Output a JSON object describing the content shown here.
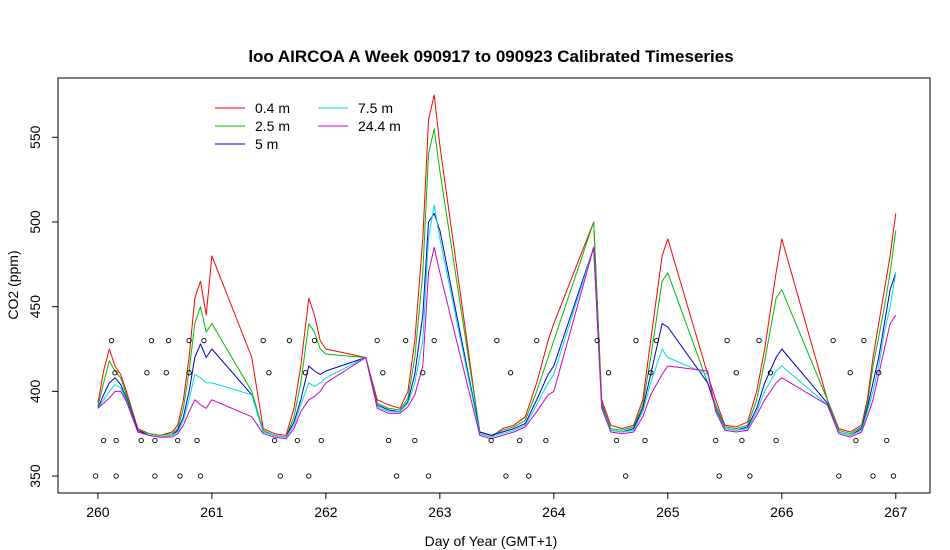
{
  "chart_data": {
    "type": "line",
    "title": "loo AIRCOA A  Week 090917 to 090923  Calibrated Timeseries",
    "xlabel": "Day of Year (GMT+1)",
    "ylabel": "CO2 (ppm)",
    "xlim": [
      259.65,
      267.3
    ],
    "ylim": [
      340,
      585
    ],
    "x_ticks": [
      260,
      261,
      262,
      263,
      264,
      265,
      266,
      267
    ],
    "y_ticks": [
      350,
      400,
      450,
      500,
      550
    ],
    "legend_position": "top-left",
    "colors": {
      "0.4 m": "#ff0000",
      "2.5 m": "#00bb00",
      "5 m": "#0000cc",
      "7.5 m": "#00dddd",
      "24.4 m": "#cc00cc",
      "markers": "#000000"
    },
    "series": [
      {
        "name": "0.4 m",
        "color": "#ff0000",
        "x": [
          260.0,
          260.05,
          260.1,
          260.15,
          260.2,
          260.25,
          260.35,
          260.45,
          260.55,
          260.65,
          260.7,
          260.75,
          260.8,
          260.85,
          260.9,
          260.95,
          261.0,
          261.35,
          261.45,
          261.55,
          261.65,
          261.72,
          261.78,
          261.85,
          261.9,
          261.95,
          262.0,
          262.35,
          262.45,
          262.55,
          262.65,
          262.72,
          262.78,
          262.85,
          262.9,
          262.95,
          263.0,
          263.35,
          263.45,
          263.55,
          263.65,
          263.75,
          263.85,
          263.95,
          264.0,
          264.35,
          264.42,
          264.5,
          264.6,
          264.7,
          264.78,
          264.85,
          264.95,
          265.0,
          265.35,
          265.42,
          265.5,
          265.6,
          265.7,
          265.78,
          265.85,
          265.95,
          266.0,
          266.4,
          266.5,
          266.6,
          266.7,
          266.75,
          266.8,
          266.85,
          266.9,
          266.95,
          267.0
        ],
        "values": [
          393,
          412,
          425,
          415,
          410,
          400,
          378,
          375,
          374,
          376,
          380,
          395,
          420,
          455,
          465,
          445,
          480,
          420,
          378,
          375,
          374,
          390,
          415,
          455,
          445,
          430,
          425,
          420,
          395,
          392,
          390,
          400,
          430,
          490,
          560,
          575,
          545,
          375,
          373,
          378,
          380,
          385,
          405,
          430,
          440,
          500,
          395,
          380,
          378,
          380,
          395,
          430,
          480,
          490,
          410,
          395,
          380,
          379,
          382,
          400,
          425,
          470,
          490,
          395,
          378,
          376,
          380,
          395,
          420,
          440,
          460,
          480,
          505
        ]
      },
      {
        "name": "2.5 m",
        "color": "#00bb00",
        "x": [
          260.0,
          260.05,
          260.1,
          260.15,
          260.2,
          260.25,
          260.35,
          260.45,
          260.55,
          260.65,
          260.7,
          260.75,
          260.8,
          260.85,
          260.9,
          260.95,
          261.0,
          261.35,
          261.45,
          261.55,
          261.65,
          261.72,
          261.78,
          261.85,
          261.9,
          261.95,
          262.0,
          262.35,
          262.45,
          262.55,
          262.65,
          262.72,
          262.78,
          262.85,
          262.9,
          262.95,
          263.0,
          263.35,
          263.45,
          263.55,
          263.65,
          263.75,
          263.85,
          263.95,
          264.0,
          264.35,
          264.42,
          264.5,
          264.6,
          264.7,
          264.78,
          264.85,
          264.95,
          265.0,
          265.35,
          265.42,
          265.5,
          265.6,
          265.7,
          265.78,
          265.85,
          265.95,
          266.0,
          266.4,
          266.5,
          266.6,
          266.7,
          266.75,
          266.8,
          266.85,
          266.9,
          266.95,
          267.0
        ],
        "values": [
          391,
          405,
          418,
          412,
          408,
          398,
          377,
          375,
          374,
          375,
          378,
          390,
          412,
          440,
          450,
          435,
          440,
          400,
          377,
          374,
          373,
          385,
          405,
          440,
          435,
          425,
          422,
          420,
          393,
          390,
          389,
          396,
          420,
          470,
          540,
          555,
          530,
          376,
          374,
          377,
          379,
          383,
          400,
          420,
          430,
          500,
          393,
          378,
          377,
          379,
          392,
          420,
          465,
          470,
          405,
          392,
          379,
          378,
          380,
          395,
          418,
          455,
          460,
          395,
          377,
          375,
          379,
          392,
          415,
          432,
          450,
          470,
          495
        ]
      },
      {
        "name": "5 m",
        "color": "#0000cc",
        "x": [
          260.0,
          260.05,
          260.1,
          260.15,
          260.2,
          260.25,
          260.35,
          260.45,
          260.55,
          260.65,
          260.7,
          260.75,
          260.8,
          260.85,
          260.9,
          260.95,
          261.0,
          261.35,
          261.45,
          261.55,
          261.65,
          261.72,
          261.78,
          261.85,
          261.9,
          261.95,
          262.0,
          262.35,
          262.45,
          262.55,
          262.65,
          262.72,
          262.78,
          262.85,
          262.9,
          262.95,
          263.0,
          263.35,
          263.45,
          263.55,
          263.65,
          263.75,
          263.85,
          263.95,
          264.0,
          264.35,
          264.42,
          264.5,
          264.6,
          264.7,
          264.78,
          264.85,
          264.95,
          265.0,
          265.35,
          265.42,
          265.5,
          265.6,
          265.7,
          265.78,
          265.85,
          265.95,
          266.0,
          266.4,
          266.5,
          266.6,
          266.7,
          266.75,
          266.8,
          266.85,
          266.9,
          266.95,
          267.0
        ],
        "values": [
          390,
          398,
          405,
          408,
          404,
          396,
          377,
          374,
          373,
          374,
          377,
          385,
          400,
          420,
          428,
          420,
          425,
          398,
          376,
          374,
          373,
          382,
          395,
          415,
          412,
          410,
          412,
          420,
          392,
          389,
          388,
          394,
          410,
          445,
          500,
          505,
          495,
          376,
          374,
          376,
          378,
          381,
          395,
          410,
          415,
          485,
          392,
          377,
          376,
          378,
          390,
          410,
          440,
          438,
          405,
          390,
          378,
          377,
          379,
          390,
          405,
          420,
          425,
          393,
          376,
          374,
          378,
          390,
          405,
          420,
          440,
          460,
          470
        ]
      },
      {
        "name": "7.5 m",
        "color": "#00dddd",
        "x": [
          260.0,
          260.05,
          260.1,
          260.15,
          260.2,
          260.25,
          260.35,
          260.45,
          260.55,
          260.65,
          260.7,
          260.75,
          260.8,
          260.85,
          260.9,
          260.95,
          261.0,
          261.35,
          261.45,
          261.55,
          261.65,
          261.72,
          261.78,
          261.85,
          261.9,
          261.95,
          262.0,
          262.35,
          262.45,
          262.55,
          262.65,
          262.72,
          262.78,
          262.85,
          262.9,
          262.95,
          263.0,
          263.35,
          263.45,
          263.55,
          263.65,
          263.75,
          263.85,
          263.95,
          264.0,
          264.35,
          264.42,
          264.5,
          264.6,
          264.7,
          264.78,
          264.85,
          264.95,
          265.0,
          265.35,
          265.42,
          265.5,
          265.6,
          265.7,
          265.78,
          265.85,
          265.95,
          266.0,
          266.4,
          266.5,
          266.6,
          266.7,
          266.75,
          266.8,
          266.85,
          266.9,
          266.95,
          267.0
        ],
        "values": [
          390,
          395,
          400,
          404,
          402,
          395,
          376,
          374,
          373,
          374,
          376,
          383,
          395,
          410,
          408,
          405,
          405,
          398,
          376,
          374,
          373,
          380,
          392,
          405,
          403,
          405,
          408,
          420,
          391,
          388,
          388,
          393,
          405,
          430,
          490,
          510,
          490,
          375,
          373,
          375,
          377,
          380,
          392,
          405,
          410,
          485,
          391,
          377,
          376,
          377,
          388,
          405,
          425,
          420,
          410,
          389,
          378,
          377,
          378,
          388,
          400,
          412,
          415,
          392,
          376,
          374,
          377,
          388,
          400,
          415,
          435,
          450,
          470
        ]
      },
      {
        "name": "24.4 m",
        "color": "#cc00cc",
        "x": [
          260.0,
          260.05,
          260.1,
          260.15,
          260.2,
          260.25,
          260.35,
          260.45,
          260.55,
          260.65,
          260.7,
          260.75,
          260.8,
          260.85,
          260.9,
          260.95,
          261.0,
          261.35,
          261.45,
          261.55,
          261.65,
          261.72,
          261.78,
          261.85,
          261.9,
          261.95,
          262.0,
          262.35,
          262.45,
          262.55,
          262.65,
          262.72,
          262.78,
          262.85,
          262.9,
          262.95,
          263.0,
          263.35,
          263.45,
          263.55,
          263.65,
          263.75,
          263.85,
          263.95,
          264.0,
          264.35,
          264.42,
          264.5,
          264.6,
          264.7,
          264.78,
          264.85,
          264.95,
          265.0,
          265.35,
          265.42,
          265.5,
          265.6,
          265.7,
          265.78,
          265.85,
          265.95,
          266.0,
          266.4,
          266.5,
          266.6,
          266.7,
          266.75,
          266.8,
          266.85,
          266.9,
          266.95,
          267.0
        ],
        "values": [
          390,
          393,
          396,
          400,
          400,
          394,
          376,
          374,
          373,
          373,
          375,
          380,
          388,
          395,
          392,
          390,
          395,
          385,
          375,
          373,
          372,
          378,
          388,
          395,
          397,
          400,
          405,
          420,
          390,
          387,
          387,
          391,
          398,
          415,
          470,
          485,
          470,
          374,
          372,
          374,
          376,
          379,
          388,
          398,
          400,
          485,
          390,
          376,
          375,
          376,
          385,
          398,
          410,
          415,
          412,
          388,
          377,
          376,
          377,
          386,
          395,
          405,
          408,
          392,
          375,
          373,
          376,
          385,
          395,
          410,
          425,
          440,
          445
        ]
      }
    ],
    "markers": {
      "x": [
        259.98,
        260.05,
        260.12,
        260.15,
        260.16,
        260.16,
        260.38,
        260.43,
        260.47,
        260.5,
        260.5,
        260.6,
        260.62,
        260.7,
        260.72,
        260.8,
        260.8,
        260.87,
        260.9,
        260.93,
        261.45,
        261.5,
        261.55,
        261.6,
        261.68,
        261.75,
        261.82,
        261.85,
        261.9,
        261.96,
        262.45,
        262.5,
        262.55,
        262.62,
        262.7,
        262.78,
        262.85,
        262.9,
        262.95,
        263.45,
        263.5,
        263.58,
        263.62,
        263.7,
        263.78,
        263.85,
        263.93,
        264.38,
        264.48,
        264.55,
        264.63,
        264.72,
        264.8,
        264.85,
        264.9,
        265.42,
        265.45,
        265.52,
        265.6,
        265.65,
        265.72,
        265.8,
        265.9,
        265.95,
        266.45,
        266.5,
        266.6,
        266.65,
        266.72,
        266.8,
        266.85,
        266.92,
        266.98
      ],
      "y": [
        350,
        371,
        430,
        411,
        350,
        371,
        371,
        411,
        430,
        350,
        371,
        411,
        430,
        371,
        350,
        430,
        411,
        371,
        350,
        430,
        430,
        411,
        371,
        350,
        430,
        371,
        411,
        350,
        430,
        371,
        430,
        411,
        371,
        350,
        430,
        371,
        411,
        350,
        430,
        371,
        430,
        350,
        411,
        371,
        350,
        430,
        371,
        430,
        411,
        371,
        350,
        430,
        371,
        411,
        430,
        371,
        350,
        430,
        411,
        371,
        350,
        430,
        411,
        371,
        430,
        350,
        411,
        371,
        430,
        350,
        411,
        371,
        350
      ]
    }
  }
}
